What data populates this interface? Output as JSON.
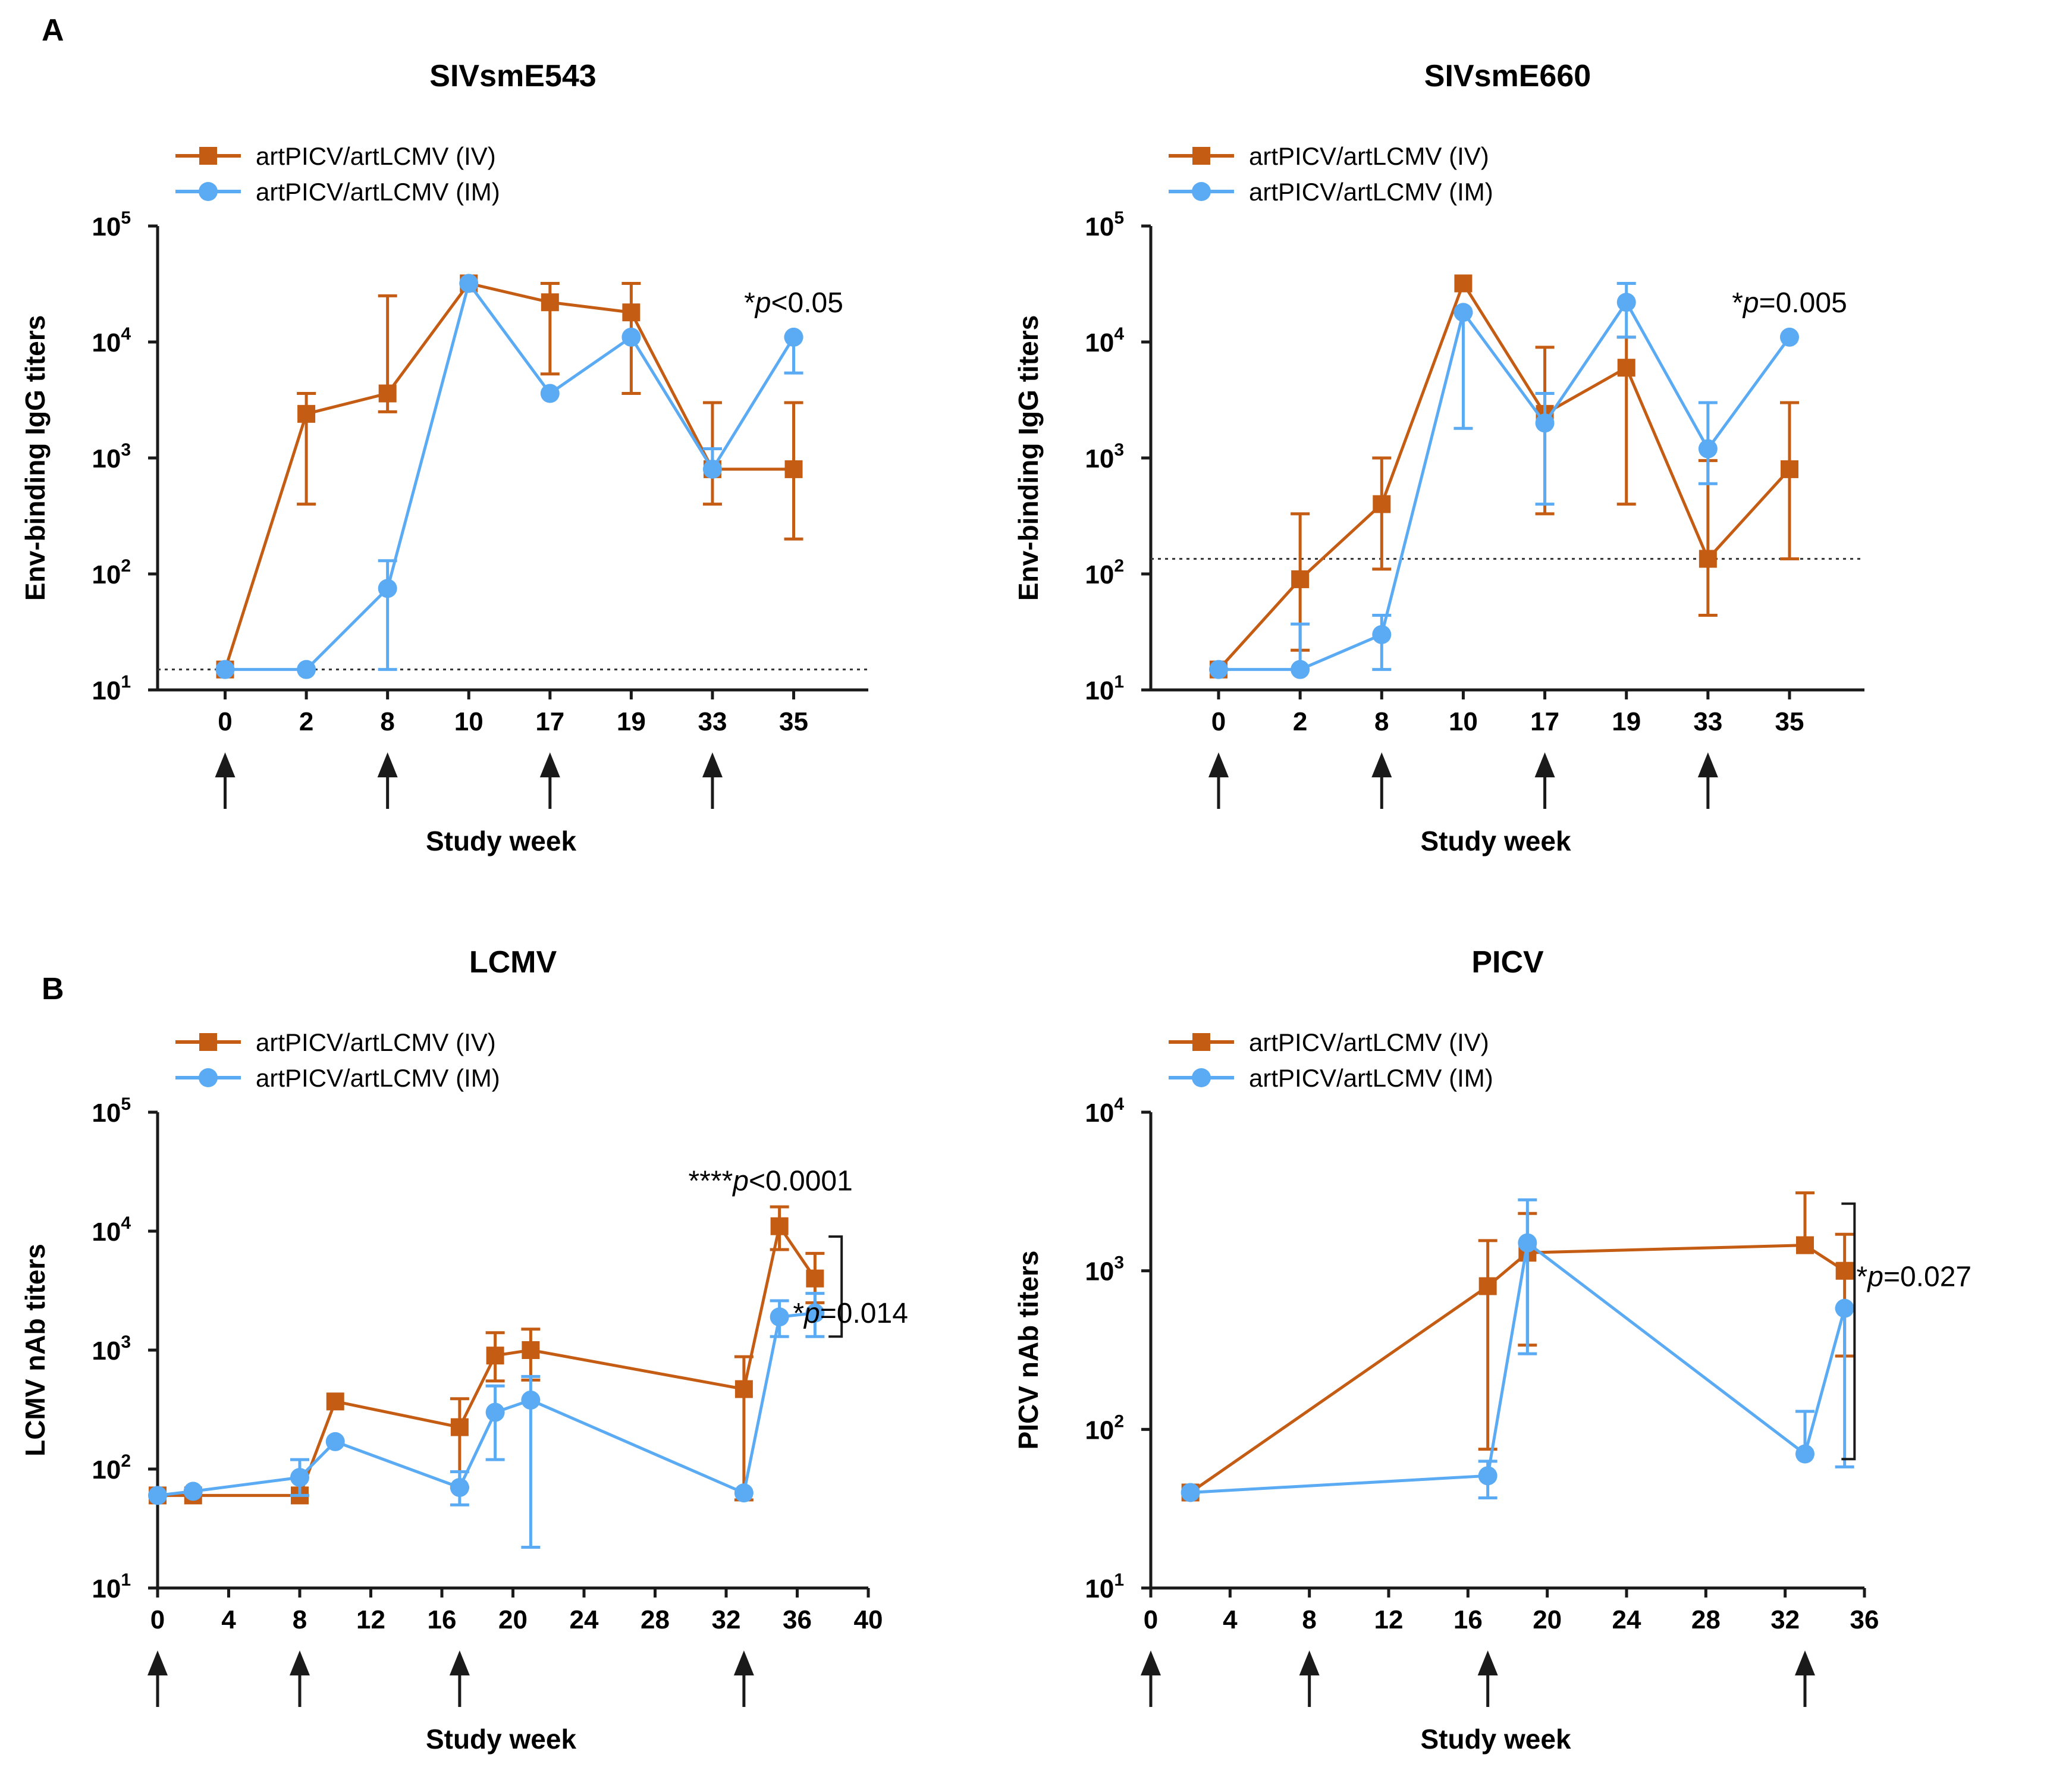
{
  "figure": {
    "panel_letters": [
      "A",
      "B"
    ],
    "colors": {
      "iv": "#c45c13",
      "im": "#5aabf3",
      "axis": "#1a1a1a"
    }
  },
  "chart_data": [
    {
      "id": "sivsme543",
      "type": "line",
      "scale": "log",
      "panel": "A",
      "title": "SIVsmE543",
      "xlabel": "Study week",
      "ylabel": "Env-binding IgG titers",
      "x_mode": "categorical",
      "categories": [
        "0",
        "2",
        "8",
        "10",
        "17",
        "19",
        "33",
        "35"
      ],
      "ylim": [
        10,
        100000
      ],
      "yticks": [
        10,
        100,
        1000,
        10000,
        100000
      ],
      "ytick_labels": [
        [
          "10",
          "1"
        ],
        [
          "10",
          "2"
        ],
        [
          "10",
          "3"
        ],
        [
          "10",
          "4"
        ],
        [
          "10",
          "5"
        ]
      ],
      "threshold": 15,
      "immunizations": [
        "0",
        "8",
        "17",
        "33"
      ],
      "legend": [
        "artPICV/artLCMV (IV)",
        "artPICV/artLCMV (IM)"
      ],
      "series": [
        {
          "name": "artPICV/artLCMV (IV)",
          "marker": "square",
          "values": [
            15,
            2400,
            3600,
            32000,
            22000,
            18000,
            800,
            800
          ],
          "err_low": [
            null,
            400,
            2500,
            null,
            5300,
            3600,
            400,
            200
          ],
          "err_high": [
            null,
            3600,
            25000,
            null,
            32000,
            32000,
            3000,
            3000
          ]
        },
        {
          "name": "artPICV/artLCMV (IM)",
          "marker": "circle",
          "values": [
            15,
            15,
            75,
            32000,
            3600,
            11000,
            800,
            11000
          ],
          "err_low": [
            null,
            null,
            15,
            null,
            null,
            null,
            null,
            5400
          ],
          "err_high": [
            null,
            null,
            130,
            null,
            null,
            null,
            1200,
            11000
          ]
        }
      ],
      "annotations": [
        {
          "prefix": "*",
          "italic": "p",
          "rest": "<0.05",
          "x": "35",
          "y": 18000
        }
      ]
    },
    {
      "id": "sivsme660",
      "type": "line",
      "scale": "log",
      "panel": "A",
      "title": "SIVsmE660",
      "xlabel": "Study week",
      "ylabel": "Env-binding IgG titers",
      "x_mode": "categorical",
      "categories": [
        "0",
        "2",
        "8",
        "10",
        "17",
        "19",
        "33",
        "35"
      ],
      "ylim": [
        10,
        100000
      ],
      "yticks": [
        10,
        100,
        1000,
        10000,
        100000
      ],
      "ytick_labels": [
        [
          "10",
          "1"
        ],
        [
          "10",
          "2"
        ],
        [
          "10",
          "3"
        ],
        [
          "10",
          "4"
        ],
        [
          "10",
          "5"
        ]
      ],
      "threshold": 135,
      "immunizations": [
        "0",
        "8",
        "17",
        "33"
      ],
      "legend": [
        "artPICV/artLCMV (IV)",
        "artPICV/artLCMV (IM)"
      ],
      "series": [
        {
          "name": "artPICV/artLCMV (IV)",
          "marker": "square",
          "values": [
            15,
            90,
            400,
            32000,
            2400,
            6000,
            135,
            800
          ],
          "err_low": [
            null,
            22,
            110,
            null,
            330,
            400,
            44,
            135
          ],
          "err_high": [
            null,
            330,
            1000,
            null,
            9000,
            11000,
            950,
            3000
          ]
        },
        {
          "name": "artPICV/artLCMV (IM)",
          "marker": "circle",
          "values": [
            15,
            15,
            30,
            18000,
            2000,
            22000,
            1200,
            11000
          ],
          "err_low": [
            null,
            null,
            15,
            1800,
            400,
            11000,
            600,
            null
          ],
          "err_high": [
            null,
            37,
            44,
            18000,
            3600,
            32000,
            3000,
            null
          ]
        }
      ],
      "annotations": [
        {
          "prefix": "*",
          "italic": "p",
          "rest": "=0.005",
          "x": "35",
          "y": 18000
        }
      ]
    },
    {
      "id": "lcmv",
      "type": "line",
      "scale": "log",
      "panel": "B",
      "title": "LCMV",
      "xlabel": "Study week",
      "ylabel": "LCMV nAb titers",
      "x_mode": "numeric",
      "xlim": [
        0,
        40
      ],
      "xticks": [
        0,
        4,
        8,
        12,
        16,
        20,
        24,
        28,
        32,
        36,
        40
      ],
      "ylim": [
        10,
        100000
      ],
      "yticks": [
        10,
        100,
        1000,
        10000,
        100000
      ],
      "ytick_labels": [
        [
          "10",
          "1"
        ],
        [
          "10",
          "2"
        ],
        [
          "10",
          "3"
        ],
        [
          "10",
          "4"
        ],
        [
          "10",
          "5"
        ]
      ],
      "immunizations": [
        0,
        8,
        17,
        33
      ],
      "legend": [
        "artPICV/artLCMV (IV)",
        "artPICV/artLCMV (IM)"
      ],
      "series": [
        {
          "name": "artPICV/artLCMV (IV)",
          "marker": "square",
          "x": [
            0,
            2,
            8,
            10,
            17,
            19,
            21,
            33,
            35,
            37
          ],
          "values": [
            60,
            60,
            60,
            370,
            225,
            900,
            1000,
            470,
            11000,
            4000
          ],
          "err_low": [
            null,
            null,
            null,
            null,
            70,
            550,
            560,
            55,
            7000,
            2500
          ],
          "err_high": [
            null,
            null,
            null,
            null,
            390,
            1400,
            1500,
            880,
            16000,
            6500
          ]
        },
        {
          "name": "artPICV/artLCMV (IM)",
          "marker": "circle",
          "x": [
            0,
            2,
            8,
            10,
            17,
            19,
            21,
            33,
            35,
            37
          ],
          "values": [
            60,
            65,
            85,
            170,
            70,
            300,
            380,
            63,
            1900,
            2050
          ],
          "err_low": [
            null,
            null,
            60,
            null,
            50,
            120,
            22,
            null,
            1300,
            1300
          ],
          "err_high": [
            null,
            null,
            120,
            null,
            95,
            500,
            600,
            null,
            2600,
            3000
          ]
        }
      ],
      "annotations": [
        {
          "prefix": "****",
          "italic": "p",
          "rest": "<0.0001",
          "x": 34.5,
          "y": 22000
        },
        {
          "prefix": "*",
          "italic": "p",
          "rest": "=0.014",
          "x": 39,
          "y": 1700
        }
      ],
      "brackets": [
        {
          "x": 38.5,
          "y1": 9000,
          "y2": 1300
        }
      ]
    },
    {
      "id": "picv",
      "type": "line",
      "scale": "log",
      "panel": "B",
      "title": "PICV",
      "xlabel": "Study week",
      "ylabel": "PICV nAb titers",
      "x_mode": "numeric",
      "xlim": [
        0,
        36
      ],
      "xticks": [
        0,
        4,
        8,
        12,
        16,
        20,
        24,
        28,
        32,
        36
      ],
      "ylim": [
        10,
        10000
      ],
      "yticks": [
        10,
        100,
        1000,
        10000
      ],
      "ytick_labels": [
        [
          "10",
          "1"
        ],
        [
          "10",
          "2"
        ],
        [
          "10",
          "3"
        ],
        [
          "10",
          "4"
        ]
      ],
      "immunizations": [
        0,
        8,
        17,
        33
      ],
      "legend": [
        "artPICV/artLCMV (IV)",
        "artPICV/artLCMV (IM)"
      ],
      "series": [
        {
          "name": "artPICV/artLCMV (IV)",
          "marker": "square",
          "x": [
            2,
            17,
            19,
            33,
            35
          ],
          "values": [
            40,
            800,
            1300,
            1450,
            1000
          ],
          "err_low": [
            null,
            75,
            340,
            null,
            290
          ],
          "err_high": [
            null,
            1550,
            2300,
            3100,
            1700
          ]
        },
        {
          "name": "artPICV/artLCMV (IM)",
          "marker": "circle",
          "x": [
            2,
            17,
            19,
            33,
            35
          ],
          "values": [
            40,
            51,
            1500,
            70,
            580
          ],
          "err_low": [
            null,
            37,
            300,
            null,
            58
          ],
          "err_high": [
            null,
            63,
            2800,
            130,
            580
          ]
        }
      ],
      "annotations": [
        {
          "prefix": "*",
          "italic": "p",
          "rest": "=0.027",
          "x": 38.5,
          "y": 800
        }
      ],
      "brackets": [
        {
          "x": 35.5,
          "y1": 2650,
          "y2": 65
        }
      ]
    }
  ]
}
